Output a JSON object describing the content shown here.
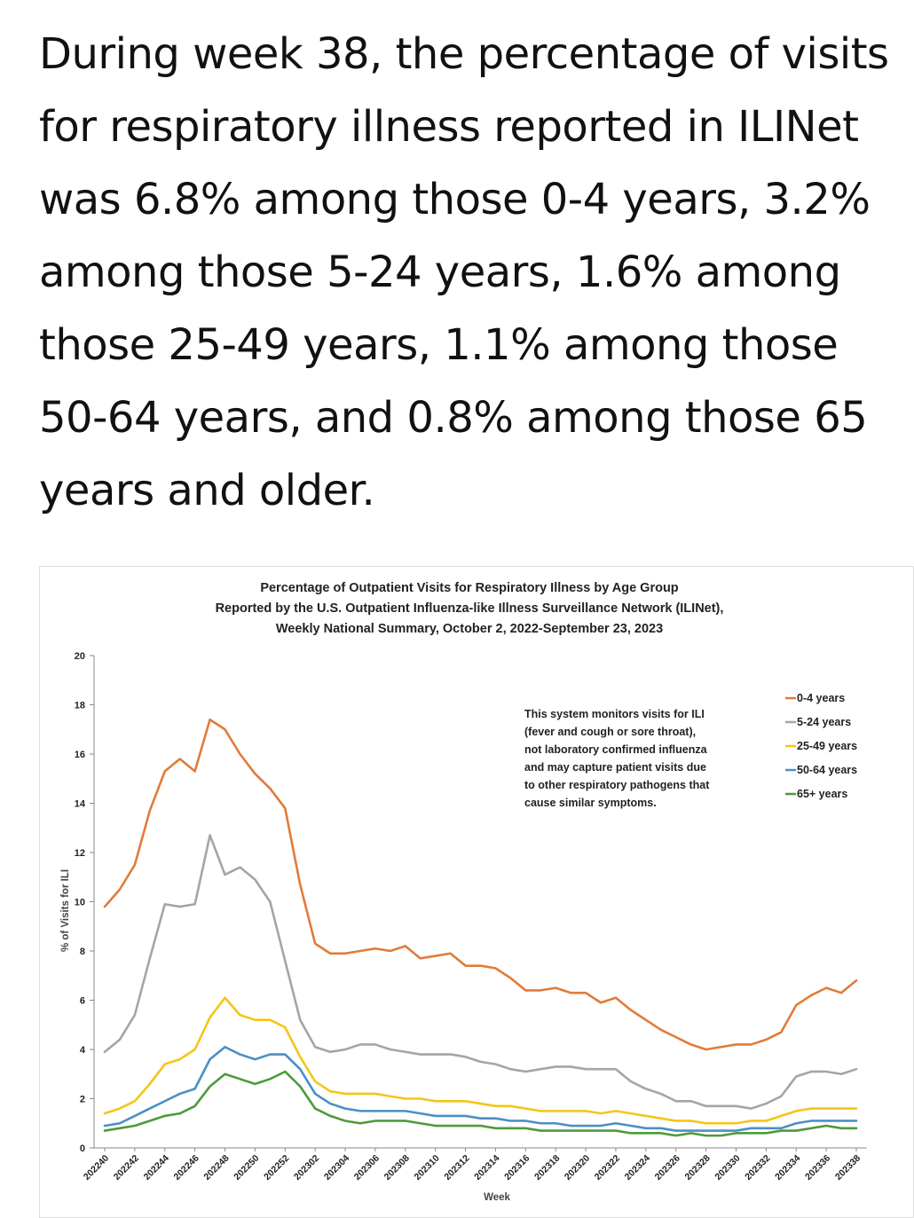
{
  "headline": "During week 38, the percentage of visits for respiratory illness reported in ILINet was 6.8% among those 0-4 years, 3.2% among those 5-24 years, 1.6% among those 25-49 years, 1.1% among those 50-64 years, and 0.8% among those 65 years and older.",
  "chart_data": {
    "type": "line",
    "title_lines": [
      "Percentage of Outpatient Visits for Respiratory Illness by Age Group",
      "Reported by the U.S. Outpatient Influenza-like Illness Surveillance Network (ILINet),",
      "Weekly National Summary, October 2, 2022-September 23, 2023"
    ],
    "xlabel": "Week",
    "ylabel": "% of Visits for ILI",
    "ylim": [
      0,
      20
    ],
    "yticks": [
      0,
      2,
      4,
      6,
      8,
      10,
      12,
      14,
      16,
      18,
      20
    ],
    "grid": false,
    "legend_position": "top-right",
    "note": [
      "This system monitors visits for ILI",
      "(fever and cough or sore throat),",
      "not laboratory confirmed influenza",
      "and may capture patient visits due",
      "to other respiratory pathogens that",
      "cause similar symptoms."
    ],
    "x_tick_labels": [
      "202240",
      "202242",
      "202244",
      "202246",
      "202248",
      "202250",
      "202252",
      "202302",
      "202304",
      "202306",
      "202308",
      "202310",
      "202312",
      "202314",
      "202316",
      "202318",
      "202320",
      "202322",
      "202324",
      "202326",
      "202328",
      "202330",
      "202332",
      "202334",
      "202336",
      "202338"
    ],
    "weeks": [
      "202240",
      "202241",
      "202242",
      "202243",
      "202244",
      "202245",
      "202246",
      "202247",
      "202248",
      "202249",
      "202250",
      "202251",
      "202252",
      "202301",
      "202302",
      "202303",
      "202304",
      "202305",
      "202306",
      "202307",
      "202308",
      "202309",
      "202310",
      "202311",
      "202312",
      "202313",
      "202314",
      "202315",
      "202316",
      "202317",
      "202318",
      "202319",
      "202320",
      "202321",
      "202322",
      "202323",
      "202324",
      "202325",
      "202326",
      "202327",
      "202328",
      "202329",
      "202330",
      "202331",
      "202332",
      "202333",
      "202334",
      "202335",
      "202336",
      "202337",
      "202338"
    ],
    "series": [
      {
        "name": "0-4 years",
        "color": "#E07B39",
        "values": [
          9.8,
          10.5,
          11.5,
          13.7,
          15.3,
          15.8,
          15.3,
          17.4,
          17.0,
          16.0,
          15.2,
          14.6,
          13.8,
          10.7,
          8.3,
          7.9,
          7.9,
          8.0,
          8.1,
          8.0,
          8.2,
          7.7,
          7.8,
          7.9,
          7.4,
          7.4,
          7.3,
          6.9,
          6.4,
          6.4,
          6.5,
          6.3,
          6.3,
          5.9,
          6.1,
          5.6,
          5.2,
          4.8,
          4.5,
          4.2,
          4.0,
          4.1,
          4.2,
          4.2,
          4.4,
          4.7,
          5.8,
          6.2,
          6.5,
          6.3,
          6.8
        ]
      },
      {
        "name": "5-24 years",
        "color": "#A5A5A5",
        "values": [
          3.9,
          4.4,
          5.4,
          7.7,
          9.9,
          9.8,
          9.9,
          12.7,
          11.1,
          11.4,
          10.9,
          10.0,
          7.6,
          5.2,
          4.1,
          3.9,
          4.0,
          4.2,
          4.2,
          4.0,
          3.9,
          3.8,
          3.8,
          3.8,
          3.7,
          3.5,
          3.4,
          3.2,
          3.1,
          3.2,
          3.3,
          3.3,
          3.2,
          3.2,
          3.2,
          2.7,
          2.4,
          2.2,
          1.9,
          1.9,
          1.7,
          1.7,
          1.7,
          1.6,
          1.8,
          2.1,
          2.9,
          3.1,
          3.1,
          3.0,
          3.2
        ]
      },
      {
        "name": "25-49 years",
        "color": "#F5C518",
        "values": [
          1.4,
          1.6,
          1.9,
          2.6,
          3.4,
          3.6,
          4.0,
          5.3,
          6.1,
          5.4,
          5.2,
          5.2,
          4.9,
          3.7,
          2.7,
          2.3,
          2.2,
          2.2,
          2.2,
          2.1,
          2.0,
          2.0,
          1.9,
          1.9,
          1.9,
          1.8,
          1.7,
          1.7,
          1.6,
          1.5,
          1.5,
          1.5,
          1.5,
          1.4,
          1.5,
          1.4,
          1.3,
          1.2,
          1.1,
          1.1,
          1.0,
          1.0,
          1.0,
          1.1,
          1.1,
          1.3,
          1.5,
          1.6,
          1.6,
          1.6,
          1.6
        ]
      },
      {
        "name": "50-64 years",
        "color": "#4A90C4",
        "values": [
          0.9,
          1.0,
          1.3,
          1.6,
          1.9,
          2.2,
          2.4,
          3.6,
          4.1,
          3.8,
          3.6,
          3.8,
          3.8,
          3.2,
          2.2,
          1.8,
          1.6,
          1.5,
          1.5,
          1.5,
          1.5,
          1.4,
          1.3,
          1.3,
          1.3,
          1.2,
          1.2,
          1.1,
          1.1,
          1.0,
          1.0,
          0.9,
          0.9,
          0.9,
          1.0,
          0.9,
          0.8,
          0.8,
          0.7,
          0.7,
          0.7,
          0.7,
          0.7,
          0.8,
          0.8,
          0.8,
          1.0,
          1.1,
          1.1,
          1.1,
          1.1
        ]
      },
      {
        "name": "65+ years",
        "color": "#4E9A3A",
        "values": [
          0.7,
          0.8,
          0.9,
          1.1,
          1.3,
          1.4,
          1.7,
          2.5,
          3.0,
          2.8,
          2.6,
          2.8,
          3.1,
          2.5,
          1.6,
          1.3,
          1.1,
          1.0,
          1.1,
          1.1,
          1.1,
          1.0,
          0.9,
          0.9,
          0.9,
          0.9,
          0.8,
          0.8,
          0.8,
          0.7,
          0.7,
          0.7,
          0.7,
          0.7,
          0.7,
          0.6,
          0.6,
          0.6,
          0.5,
          0.6,
          0.5,
          0.5,
          0.6,
          0.6,
          0.6,
          0.7,
          0.7,
          0.8,
          0.9,
          0.8,
          0.8
        ]
      }
    ]
  }
}
